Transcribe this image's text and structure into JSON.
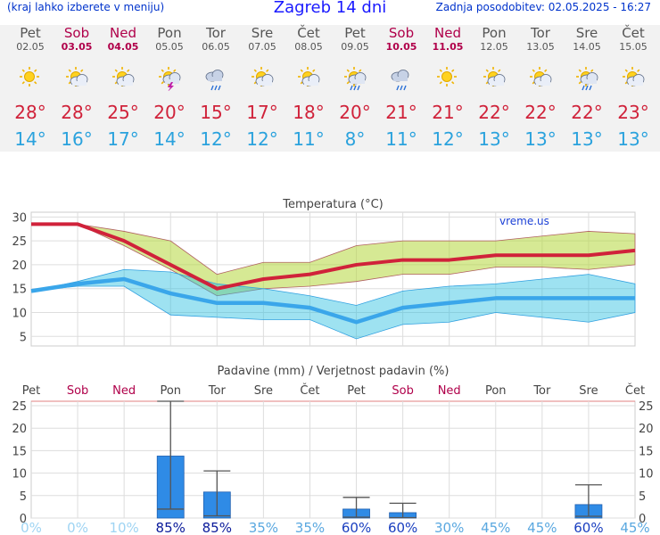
{
  "header": {
    "hint": "(kraj lahko izberete v meniju)",
    "title": "Zagreb 14 dni",
    "updated": "Zadnja posodobitev: 02.05.2025 - 16:27"
  },
  "days": [
    {
      "name": "Pet",
      "date": "02.05",
      "weekend": false,
      "icon": "sunny-icon",
      "tmax": "28°",
      "tmin": "14°"
    },
    {
      "name": "Sob",
      "date": "03.05",
      "weekend": true,
      "icon": "sun-cloud-icon",
      "tmax": "28°",
      "tmin": "16°"
    },
    {
      "name": "Ned",
      "date": "04.05",
      "weekend": true,
      "icon": "sun-cloud-icon",
      "tmax": "25°",
      "tmin": "17°"
    },
    {
      "name": "Pon",
      "date": "05.05",
      "weekend": false,
      "icon": "thunderstorm-icon",
      "tmax": "20°",
      "tmin": "14°"
    },
    {
      "name": "Tor",
      "date": "06.05",
      "weekend": false,
      "icon": "rain-cloud-icon",
      "tmax": "15°",
      "tmin": "12°"
    },
    {
      "name": "Sre",
      "date": "07.05",
      "weekend": false,
      "icon": "sun-cloud-icon",
      "tmax": "17°",
      "tmin": "12°"
    },
    {
      "name": "Čet",
      "date": "08.05",
      "weekend": false,
      "icon": "sun-cloud-icon",
      "tmax": "18°",
      "tmin": "11°"
    },
    {
      "name": "Pet",
      "date": "09.05",
      "weekend": false,
      "icon": "sun-rain-icon",
      "tmax": "20°",
      "tmin": "8°"
    },
    {
      "name": "Sob",
      "date": "10.05",
      "weekend": true,
      "icon": "rain-cloud-icon",
      "tmax": "21°",
      "tmin": "11°"
    },
    {
      "name": "Ned",
      "date": "11.05",
      "weekend": true,
      "icon": "sunny-icon",
      "tmax": "21°",
      "tmin": "12°"
    },
    {
      "name": "Pon",
      "date": "12.05",
      "weekend": false,
      "icon": "sun-cloud-icon",
      "tmax": "22°",
      "tmin": "13°"
    },
    {
      "name": "Tor",
      "date": "13.05",
      "weekend": false,
      "icon": "sun-cloud-icon",
      "tmax": "22°",
      "tmin": "13°"
    },
    {
      "name": "Sre",
      "date": "14.05",
      "weekend": false,
      "icon": "sun-rain-icon",
      "tmax": "22°",
      "tmin": "13°"
    },
    {
      "name": "Čet",
      "date": "15.05",
      "weekend": false,
      "icon": "sun-cloud-icon",
      "tmax": "23°",
      "tmin": "13°"
    }
  ],
  "colors": {
    "max": "#d0223a",
    "min": "#2aa2dd",
    "weekend": "#b0004a",
    "bar": "#2f8be6"
  },
  "chart_data": [
    {
      "type": "line",
      "title": "Temperatura (°C)",
      "watermark": "vreme.us",
      "ylim": [
        3,
        31
      ],
      "yticks": [
        5,
        10,
        15,
        20,
        25,
        30
      ],
      "grid": true,
      "x": [
        1,
        2,
        3,
        4,
        5,
        6,
        7,
        8,
        9,
        10,
        11,
        12,
        13,
        14
      ],
      "series": [
        {
          "name": "Max",
          "values": [
            28.5,
            28.5,
            25,
            20,
            15,
            17,
            18,
            20,
            21,
            21,
            22,
            22,
            22,
            23
          ]
        },
        {
          "name": "Max range high",
          "values": [
            28.5,
            28.5,
            27,
            25,
            18,
            20.5,
            20.5,
            24,
            25,
            25,
            25,
            26,
            27,
            26.5
          ]
        },
        {
          "name": "Max range low",
          "values": [
            28.5,
            28.5,
            24,
            19,
            13.5,
            15,
            15.5,
            16.5,
            18,
            18,
            19.5,
            19.5,
            19,
            20
          ]
        },
        {
          "name": "Min",
          "values": [
            14.5,
            16,
            17,
            14,
            12,
            12,
            11,
            8,
            11,
            12,
            13,
            13,
            13,
            13
          ]
        },
        {
          "name": "Min range high",
          "values": [
            14.5,
            16.5,
            19,
            18.5,
            16,
            15,
            13.5,
            11.5,
            14.5,
            15.5,
            16,
            17,
            18,
            16
          ]
        },
        {
          "name": "Min range low",
          "values": [
            14.5,
            15.5,
            15.5,
            9.5,
            9,
            8.5,
            8.5,
            4.5,
            7.5,
            8,
            10,
            9,
            8,
            10
          ]
        }
      ]
    },
    {
      "type": "bar",
      "title": "Padavine (mm) / Verjetnost padavin (%)",
      "categories": [
        "Pet",
        "Sob",
        "Ned",
        "Pon",
        "Tor",
        "Sre",
        "Čet",
        "Pet",
        "Sob",
        "Ned",
        "Pon",
        "Tor",
        "Sre",
        "Čet"
      ],
      "weekend": [
        false,
        true,
        true,
        false,
        false,
        false,
        false,
        false,
        true,
        true,
        false,
        false,
        false,
        false
      ],
      "ylim": [
        0,
        26
      ],
      "yticks": [
        0,
        5,
        10,
        15,
        20,
        25
      ],
      "values": [
        0,
        0,
        0,
        13.8,
        5.8,
        0,
        0,
        2,
        1.2,
        0,
        0,
        0,
        3,
        0
      ],
      "err_low": [
        0,
        0,
        0,
        2,
        0.5,
        0,
        0,
        0.2,
        0.1,
        0,
        0,
        0,
        0.4,
        0
      ],
      "err_high": [
        0,
        0,
        0,
        26,
        10.5,
        0,
        0,
        4.6,
        3.3,
        0,
        0,
        0,
        7.4,
        0
      ],
      "probability": [
        "0%",
        "0%",
        "10%",
        "85%",
        "85%",
        "35%",
        "35%",
        "60%",
        "60%",
        "30%",
        "45%",
        "45%",
        "60%",
        "45%"
      ],
      "prob_values": [
        0,
        0,
        10,
        85,
        85,
        35,
        35,
        60,
        60,
        30,
        45,
        45,
        60,
        45
      ]
    }
  ]
}
